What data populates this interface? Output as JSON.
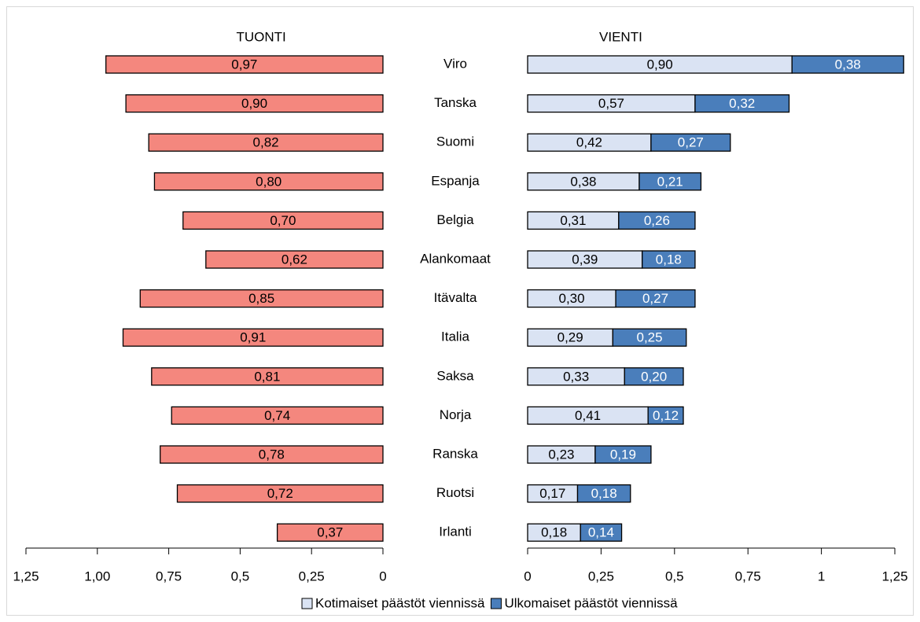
{
  "chart_data": {
    "type": "butterfly",
    "categories": [
      "Viro",
      "Tanska",
      "Suomi",
      "Espanja",
      "Belgia",
      "Alankomaat",
      "Itävalta",
      "Italia",
      "Saksa",
      "Norja",
      "Ranska",
      "Ruotsi",
      "Irlanti"
    ],
    "legend": "bottom",
    "panels": [
      {
        "title": "TUONTI",
        "direction": "left",
        "xlim": [
          0,
          1.25
        ],
        "xticks": [
          {
            "value": 1.25,
            "label": "1,25"
          },
          {
            "value": 1,
            "label": "1,00"
          },
          {
            "value": 0.75,
            "label": "0,75"
          },
          {
            "value": 0.5,
            "label": "0,5"
          },
          {
            "value": 0.25,
            "label": "0,25"
          },
          0
        ],
        "series": [
          {
            "color": "#f4877e",
            "label_color": "#000000",
            "values": [
              0.97,
              0.9,
              0.82,
              0.8,
              0.7,
              0.62,
              0.85,
              0.91,
              0.81,
              0.74,
              0.78,
              0.72,
              0.37
            ],
            "value_labels": [
              "0,97",
              "0,90",
              "0,82",
              "0,80",
              "0,70",
              "0,62",
              "0,85",
              "0,91",
              "0,81",
              "0,74",
              "0,78",
              "0,72",
              "0,37"
            ]
          }
        ]
      },
      {
        "title": "VIENTI",
        "direction": "right",
        "xlim": [
          0,
          1.25
        ],
        "xticks": [
          0,
          {
            "value": 0.25,
            "label": "0,25"
          },
          {
            "value": 0.5,
            "label": "0,5"
          },
          {
            "value": 0.75,
            "label": "0,75"
          },
          1,
          {
            "value": 1.25,
            "label": "1,25"
          }
        ],
        "series": [
          {
            "name": "Kotimaiset päästöt viennissä",
            "color": "#dae3f3",
            "label_color": "#000000",
            "values": [
              0.9,
              0.57,
              0.42,
              0.38,
              0.31,
              0.39,
              0.3,
              0.29,
              0.33,
              0.41,
              0.23,
              0.17,
              0.18
            ],
            "value_labels": [
              "0,90",
              "0,57",
              "0,42",
              "0,38",
              "0,31",
              "0,39",
              "0,30",
              "0,29",
              "0,33",
              "0,41",
              "0,23",
              "0,17",
              "0,18"
            ]
          },
          {
            "name": "Ulkomaiset päästöt viennissä",
            "color": "#4a7ebb",
            "label_color": "#ffffff",
            "values": [
              0.38,
              0.32,
              0.27,
              0.21,
              0.26,
              0.18,
              0.27,
              0.25,
              0.2,
              0.12,
              0.19,
              0.18,
              0.14
            ],
            "value_labels": [
              "0,38",
              "0,32",
              "0,27",
              "0,21",
              "0,26",
              "0,18",
              "0,27",
              "0,25",
              "0,20",
              "0,12",
              "0,19",
              "0,18",
              "0,14"
            ]
          }
        ]
      }
    ]
  }
}
